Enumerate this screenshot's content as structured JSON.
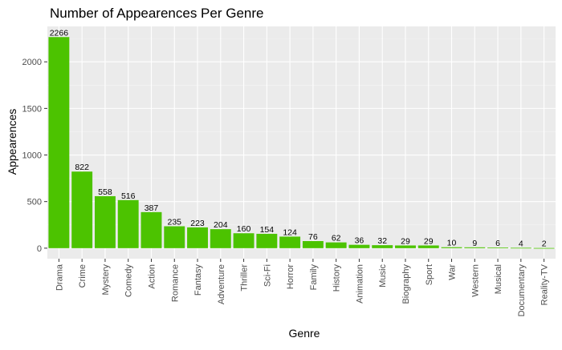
{
  "chart_data": {
    "type": "bar",
    "title": "Number of Appearences Per Genre",
    "xlabel": "Genre",
    "ylabel": "Appearences",
    "categories": [
      "Drama",
      "Crime",
      "Mystery",
      "Comedy",
      "Action",
      "Romance",
      "Fantasy",
      "Adventure",
      "Thriller",
      "Sci-Fi",
      "Horror",
      "Family",
      "History",
      "Animation",
      "Music",
      "Biography",
      "Sport",
      "War",
      "Western",
      "Musical",
      "Documentary",
      "Reality-TV"
    ],
    "values": [
      2266,
      822,
      558,
      516,
      387,
      235,
      223,
      204,
      160,
      154,
      124,
      76,
      62,
      36,
      32,
      29,
      29,
      10,
      9,
      6,
      4,
      2
    ],
    "yticks": [
      0,
      500,
      1000,
      1500,
      2000
    ],
    "ylim": [
      -113,
      2380
    ],
    "grid": true,
    "legend": "none",
    "colors": {
      "bar": "#4cc300",
      "panel": "#ebebeb",
      "grid_major": "#ffffff",
      "grid_minor": "#f5f5f5",
      "text": "#000000",
      "axis_text": "#4d4d4d"
    }
  }
}
